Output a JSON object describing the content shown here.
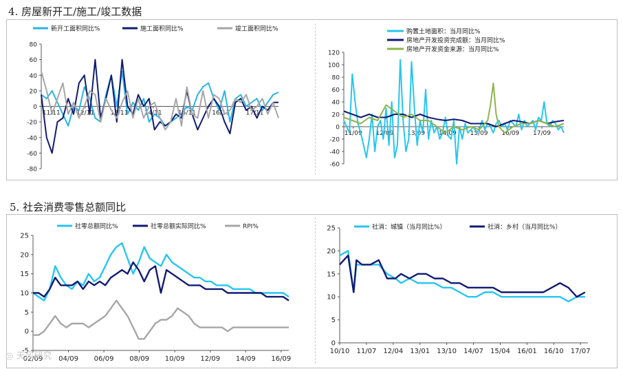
{
  "section4_title": "4. 房屋新开工/施工/竣工数据",
  "section5_title": "5. 社会消费零售总额同比",
  "watermark": "◎ 天风研究",
  "chart_data": [
    {
      "id": "c1",
      "type": "line",
      "legend": [
        "新开工面积同比%",
        "施工面积同比%",
        "竣工面积同比%"
      ],
      "y_ticks": [
        80,
        60,
        40,
        20,
        0,
        -20,
        -40,
        -60,
        -80
      ],
      "ylim": [
        -80,
        80
      ],
      "x_ticks": [
        "11/11",
        "12/11",
        "13/11",
        "14/11",
        "15/11",
        "16/11",
        "17/11"
      ],
      "xlim": [
        0,
        88
      ],
      "series": [
        {
          "name": "新开工面积同比%",
          "color": "#26b5e8",
          "x": [
            0,
            2,
            4,
            6,
            8,
            10,
            12,
            14,
            16,
            18,
            20,
            22,
            24,
            26,
            28,
            30,
            32,
            34,
            36,
            38,
            40,
            42,
            44,
            46,
            48,
            50,
            52,
            54,
            56,
            58,
            60,
            62,
            64,
            66,
            68,
            70,
            72,
            74,
            76,
            78,
            80,
            82,
            84,
            86,
            88
          ],
          "y": [
            15,
            10,
            20,
            5,
            -10,
            -25,
            0,
            -5,
            25,
            10,
            -15,
            -20,
            15,
            40,
            0,
            45,
            -10,
            5,
            -5,
            10,
            -20,
            -10,
            -15,
            -25,
            -20,
            -15,
            -10,
            0,
            -5,
            15,
            25,
            30,
            10,
            -5,
            20,
            -20,
            10,
            15,
            0,
            5,
            10,
            -5,
            5,
            15,
            18
          ]
        },
        {
          "name": "施工面积同比%",
          "color": "#101a70",
          "x": [
            0,
            2,
            4,
            6,
            8,
            10,
            12,
            14,
            16,
            18,
            20,
            22,
            24,
            26,
            28,
            30,
            32,
            34,
            36,
            38,
            40,
            42,
            44,
            46,
            48,
            50,
            52,
            54,
            56,
            58,
            60,
            62,
            64,
            66,
            68,
            70,
            72,
            74,
            76,
            78,
            80,
            82,
            84,
            86,
            88
          ],
          "y": [
            15,
            -40,
            -60,
            -20,
            -15,
            10,
            -10,
            30,
            40,
            -10,
            60,
            -15,
            10,
            40,
            -20,
            60,
            0,
            -10,
            15,
            0,
            10,
            -30,
            -20,
            -25,
            -20,
            -10,
            -15,
            20,
            -10,
            -30,
            -15,
            0,
            10,
            0,
            -20,
            -35,
            5,
            10,
            -5,
            0,
            -15,
            0,
            -5,
            5,
            5
          ]
        },
        {
          "name": "竣工面积同比%",
          "color": "#a6a6a6",
          "x": [
            0,
            2,
            4,
            6,
            8,
            10,
            12,
            14,
            16,
            18,
            20,
            22,
            24,
            26,
            28,
            30,
            32,
            34,
            36,
            38,
            40,
            42,
            44,
            46,
            48,
            50,
            52,
            54,
            56,
            58,
            60,
            62,
            64,
            66,
            68,
            70,
            72,
            74,
            76,
            78,
            80,
            82,
            84,
            86,
            88
          ],
          "y": [
            45,
            20,
            -10,
            10,
            30,
            -10,
            5,
            -15,
            0,
            20,
            15,
            -20,
            10,
            -5,
            -15,
            5,
            20,
            -15,
            10,
            -15,
            0,
            5,
            -15,
            -30,
            -20,
            10,
            -25,
            25,
            -10,
            -15,
            20,
            -15,
            15,
            10,
            -10,
            -5,
            10,
            5,
            15,
            -5,
            0,
            10,
            -10,
            5,
            -15
          ]
        }
      ]
    },
    {
      "id": "c2",
      "type": "line",
      "legend": [
        "购置土地面积：当月同比%",
        "房地产开发投资完成额：当月同比%",
        "房地产开发资金来源：当月同比%"
      ],
      "y_ticks": [
        120,
        100,
        80,
        60,
        40,
        20,
        0,
        -20,
        -40,
        -60
      ],
      "ylim": [
        -60,
        120
      ],
      "x_ticks": [
        "11/09",
        "12/09",
        "13/09",
        "14/09",
        "15/09",
        "16/09",
        "17/09"
      ],
      "xlim": [
        0,
        78
      ],
      "series": [
        {
          "name": "购置土地面积：当月同比%",
          "color": "#26c5f0",
          "x": [
            0,
            1,
            2,
            3,
            4,
            5,
            6,
            7,
            8,
            9,
            10,
            11,
            12,
            13,
            14,
            15,
            16,
            17,
            18,
            19,
            20,
            21,
            22,
            23,
            24,
            25,
            26,
            27,
            28,
            29,
            30,
            31,
            32,
            33,
            34,
            35,
            36,
            37,
            38,
            39,
            40,
            41,
            42,
            43,
            44,
            45,
            46,
            47,
            48,
            49,
            50,
            51,
            52,
            53,
            54,
            55,
            56,
            57,
            58,
            59,
            60,
            61,
            62,
            63,
            64,
            65,
            66,
            67,
            68,
            69,
            70,
            71,
            72,
            73,
            74,
            75,
            76,
            77,
            78
          ],
          "y": [
            10,
            0,
            -10,
            85,
            40,
            5,
            -10,
            -30,
            -50,
            -20,
            20,
            -40,
            0,
            10,
            -20,
            30,
            -30,
            40,
            -50,
            -30,
            108,
            10,
            -40,
            -20,
            105,
            30,
            -30,
            10,
            -10,
            60,
            -20,
            10,
            -10,
            0,
            -20,
            -10,
            15,
            -15,
            -20,
            10,
            -60,
            0,
            -20,
            5,
            -10,
            -5,
            0,
            -10,
            -5,
            10,
            -5,
            5,
            0,
            -10,
            5,
            10,
            0,
            5,
            -5,
            10,
            5,
            0,
            20,
            -5,
            10,
            0,
            5,
            10,
            -5,
            15,
            10,
            40,
            5,
            0,
            10,
            5,
            -5,
            0,
            -10
          ]
        },
        {
          "name": "房地产开发投资完成额：当月同比%",
          "color": "#101a70",
          "x": [
            0,
            3,
            6,
            9,
            12,
            15,
            18,
            21,
            24,
            27,
            30,
            33,
            36,
            39,
            42,
            45,
            48,
            51,
            54,
            57,
            60,
            63,
            66,
            69,
            72,
            75,
            78
          ],
          "y": [
            25,
            20,
            15,
            20,
            15,
            15,
            20,
            20,
            15,
            20,
            15,
            12,
            10,
            12,
            10,
            5,
            5,
            5,
            0,
            5,
            10,
            8,
            5,
            10,
            5,
            8,
            10
          ]
        },
        {
          "name": "房地产开发资金来源：当月同比%",
          "color": "#8eb44a",
          "x": [
            0,
            3,
            6,
            9,
            12,
            15,
            18,
            21,
            24,
            27,
            30,
            33,
            36,
            39,
            42,
            45,
            48,
            51,
            52,
            53,
            54,
            55,
            57,
            60,
            63,
            66,
            69,
            72,
            75,
            78
          ],
          "y": [
            15,
            10,
            5,
            15,
            10,
            35,
            25,
            15,
            20,
            10,
            10,
            0,
            -10,
            0,
            -5,
            0,
            -5,
            10,
            35,
            70,
            20,
            0,
            -10,
            0,
            5,
            5,
            10,
            5,
            0,
            5
          ]
        }
      ]
    },
    {
      "id": "c3",
      "type": "line",
      "legend": [
        "社零总额同比%",
        "社零总额实际同比%",
        "RPI%"
      ],
      "y_ticks": [
        25,
        20,
        15,
        10,
        5,
        0,
        -5
      ],
      "ylim": [
        -5,
        25
      ],
      "x_ticks": [
        "02/09",
        "04/09",
        "06/09",
        "08/09",
        "10/09",
        "12/09",
        "14/09",
        "16/09"
      ],
      "xlim": [
        0,
        184
      ],
      "series": [
        {
          "name": "社零总额同比%",
          "color": "#26c5f0",
          "x": [
            0,
            4,
            8,
            12,
            16,
            20,
            24,
            28,
            32,
            36,
            40,
            44,
            48,
            52,
            56,
            60,
            64,
            68,
            72,
            76,
            80,
            84,
            88,
            92,
            96,
            100,
            104,
            108,
            112,
            116,
            120,
            124,
            128,
            132,
            136,
            140,
            144,
            148,
            152,
            156,
            160,
            164,
            168,
            172,
            176,
            180,
            184
          ],
          "y": [
            10,
            9,
            8,
            11,
            17,
            14,
            12,
            11,
            13,
            12,
            15,
            13,
            14,
            17,
            20,
            22,
            23,
            19,
            15,
            18,
            22,
            19,
            18,
            17,
            20,
            18,
            17,
            16,
            15,
            14,
            14,
            13,
            13,
            12,
            12,
            12,
            11,
            11,
            11,
            11,
            10,
            10,
            10,
            10,
            10,
            10,
            9
          ]
        },
        {
          "name": "社零总额实际同比%",
          "color": "#101a70",
          "x": [
            0,
            4,
            8,
            12,
            16,
            20,
            24,
            28,
            32,
            36,
            40,
            44,
            48,
            52,
            56,
            60,
            64,
            68,
            72,
            76,
            80,
            84,
            88,
            92,
            96,
            100,
            104,
            108,
            112,
            116,
            120,
            124,
            128,
            132,
            136,
            140,
            144,
            148,
            152,
            156,
            160,
            164,
            168,
            172,
            176,
            180,
            184
          ],
          "y": [
            10,
            10,
            9,
            11,
            14,
            12,
            12,
            12,
            13,
            11,
            13,
            12,
            13,
            12,
            14,
            15,
            16,
            15,
            18,
            16,
            13,
            16,
            17,
            10,
            16,
            15,
            14,
            13,
            12,
            12,
            12,
            11,
            11,
            11,
            11,
            10,
            10,
            10,
            10,
            10,
            10,
            10,
            9,
            9,
            9,
            9,
            8
          ]
        },
        {
          "name": "RPI%",
          "color": "#a6a6a6",
          "x": [
            0,
            4,
            8,
            12,
            16,
            20,
            24,
            28,
            32,
            36,
            40,
            44,
            48,
            52,
            56,
            60,
            64,
            68,
            72,
            76,
            80,
            84,
            88,
            92,
            96,
            100,
            104,
            108,
            112,
            116,
            120,
            124,
            128,
            132,
            136,
            140,
            144,
            148,
            152,
            156,
            160,
            164,
            168,
            172,
            176,
            180,
            184
          ],
          "y": [
            -1,
            -1,
            0,
            2,
            4,
            2,
            1,
            2,
            2,
            2,
            1,
            2,
            3,
            4,
            6,
            8,
            6,
            4,
            1,
            -2,
            -2,
            0,
            2,
            3,
            3,
            4,
            6,
            5,
            4,
            2,
            1,
            1,
            1,
            1,
            1,
            0,
            1,
            1,
            1,
            1,
            1,
            1,
            1,
            1,
            1,
            1,
            1
          ]
        }
      ]
    },
    {
      "id": "c4",
      "type": "line",
      "legend": [
        "社消：城镇（当月同比%）",
        "社消：乡村（当月同比%）"
      ],
      "y_ticks": [
        25,
        20,
        15,
        10,
        5,
        0
      ],
      "ylim": [
        0,
        25
      ],
      "x_ticks": [
        "10/10",
        "11/07",
        "12/04",
        "13/01",
        "13/10",
        "14/07",
        "15/04",
        "16/01",
        "16/10",
        "17/07"
      ],
      "xlim": [
        0,
        89
      ],
      "series": [
        {
          "name": "社消：城镇（当月同比%）",
          "color": "#26c5f0",
          "x": [
            0,
            3,
            5,
            6,
            8,
            11,
            14,
            17,
            20,
            22,
            25,
            28,
            31,
            34,
            37,
            40,
            43,
            46,
            49,
            52,
            55,
            58,
            61,
            64,
            67,
            70,
            73,
            76,
            79,
            82,
            85,
            88
          ],
          "y": [
            19,
            20,
            11,
            17,
            17,
            17,
            17,
            15,
            14,
            13,
            14,
            13,
            13,
            13,
            12,
            12,
            11,
            10,
            10,
            11,
            11,
            10,
            10,
            10,
            10,
            10,
            10,
            10,
            10,
            9,
            10,
            10
          ]
        },
        {
          "name": "社消：乡村（当月同比%）",
          "color": "#101a70",
          "x": [
            0,
            3,
            5,
            6,
            8,
            11,
            14,
            17,
            20,
            22,
            25,
            28,
            31,
            34,
            37,
            40,
            43,
            46,
            49,
            52,
            55,
            58,
            61,
            64,
            67,
            70,
            73,
            76,
            79,
            82,
            85,
            88
          ],
          "y": [
            17,
            19,
            11,
            18,
            17,
            17,
            18,
            14,
            14,
            15,
            14,
            15,
            15,
            14,
            14,
            13,
            13,
            12,
            12,
            12,
            12,
            11,
            11,
            11,
            11,
            11,
            11,
            12,
            13,
            12,
            10,
            11
          ]
        }
      ]
    }
  ]
}
